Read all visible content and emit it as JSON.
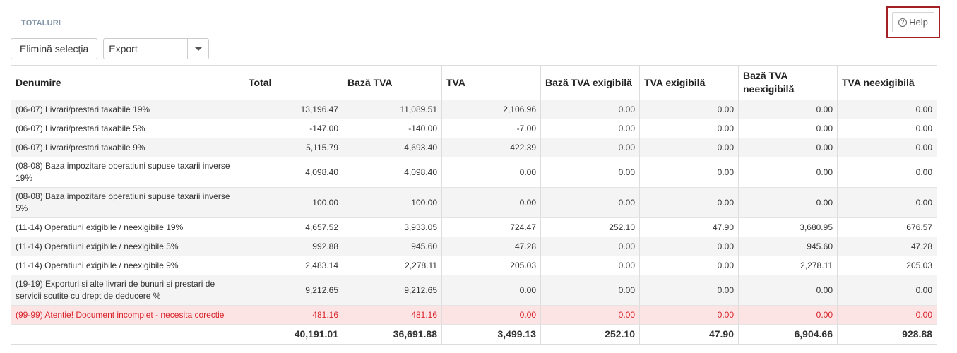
{
  "section": {
    "title": "TOTALURI"
  },
  "help": {
    "label": "Help",
    "icon": "question-circle-icon"
  },
  "toolbar": {
    "clear_label": "Elimină selecția",
    "export_value": "Export"
  },
  "table": {
    "headers": [
      "Denumire",
      "Total",
      "Bază TVA",
      "TVA",
      "Bază TVA exigibilă",
      "TVA exigibilă",
      "Bază TVA neexigibilă",
      "TVA neexigibilă"
    ],
    "rows": [
      {
        "name": "(06-07) Livrari/prestari taxabile 19%",
        "values": [
          "13,196.47",
          "11,089.51",
          "2,106.96",
          "0.00",
          "0.00",
          "0.00",
          "0.00"
        ]
      },
      {
        "name": "(06-07) Livrari/prestari taxabile 5%",
        "values": [
          "-147.00",
          "-140.00",
          "-7.00",
          "0.00",
          "0.00",
          "0.00",
          "0.00"
        ]
      },
      {
        "name": "(06-07) Livrari/prestari taxabile 9%",
        "values": [
          "5,115.79",
          "4,693.40",
          "422.39",
          "0.00",
          "0.00",
          "0.00",
          "0.00"
        ]
      },
      {
        "name": "(08-08) Baza impozitare operatiuni supuse taxarii inverse 19%",
        "values": [
          "4,098.40",
          "4,098.40",
          "0.00",
          "0.00",
          "0.00",
          "0.00",
          "0.00"
        ]
      },
      {
        "name": "(08-08) Baza impozitare operatiuni supuse taxarii inverse 5%",
        "values": [
          "100.00",
          "100.00",
          "0.00",
          "0.00",
          "0.00",
          "0.00",
          "0.00"
        ]
      },
      {
        "name": "(11-14) Operatiuni exigibile / neexigibile 19%",
        "values": [
          "4,657.52",
          "3,933.05",
          "724.47",
          "252.10",
          "47.90",
          "3,680.95",
          "676.57"
        ]
      },
      {
        "name": "(11-14) Operatiuni exigibile / neexigibile 5%",
        "values": [
          "992.88",
          "945.60",
          "47.28",
          "0.00",
          "0.00",
          "945.60",
          "47.28"
        ]
      },
      {
        "name": "(11-14) Operatiuni exigibile / neexigibile 9%",
        "values": [
          "2,483.14",
          "2,278.11",
          "205.03",
          "0.00",
          "0.00",
          "2,278.11",
          "205.03"
        ]
      },
      {
        "name": "(19-19) Exporturi si alte livrari de bunuri si prestari de servicii scutite cu drept de deducere %",
        "values": [
          "9,212.65",
          "9,212.65",
          "0.00",
          "0.00",
          "0.00",
          "0.00",
          "0.00"
        ]
      },
      {
        "name": "(99-99) Atentie! Document incomplet - necesita corectie",
        "values": [
          "481.16",
          "481.16",
          "0.00",
          "0.00",
          "0.00",
          "0.00",
          "0.00"
        ]
      }
    ],
    "totals": [
      "40,191.01",
      "36,691.88",
      "3,499.13",
      "252.10",
      "47.90",
      "6,904.66",
      "928.88"
    ]
  },
  "colors": {
    "warning_text": "#d9232b",
    "warning_bg": "#fce4e4",
    "highlight_border": "#a31f24"
  }
}
